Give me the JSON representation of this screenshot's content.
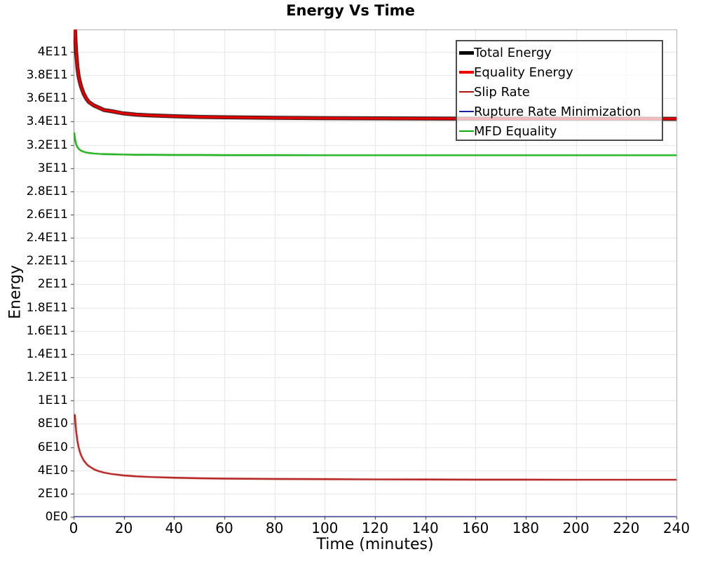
{
  "title": "Energy Vs Time",
  "axes": {
    "x_label": "Time (minutes)",
    "y_label": "Energy",
    "x_tick_labels": [
      "0",
      "20",
      "40",
      "60",
      "80",
      "100",
      "120",
      "140",
      "160",
      "180",
      "200",
      "220",
      "240"
    ],
    "x_tick_values": [
      0,
      20,
      40,
      60,
      80,
      100,
      120,
      140,
      160,
      180,
      200,
      220,
      240
    ],
    "y_tick_labels": [
      "0E0",
      "2E10",
      "4E10",
      "6E10",
      "8E10",
      "1E11",
      "1.2E11",
      "1.4E11",
      "1.6E11",
      "1.8E11",
      "2E11",
      "2.2E11",
      "2.4E11",
      "2.6E11",
      "2.8E11",
      "3E11",
      "3.2E11",
      "3.4E11",
      "3.6E11",
      "3.8E11",
      "4E11"
    ],
    "y_tick_values": [
      0,
      20000000000.0,
      40000000000.0,
      60000000000.0,
      80000000000.0,
      100000000000.0,
      120000000000.0,
      140000000000.0,
      160000000000.0,
      180000000000.0,
      200000000000.0,
      220000000000.0,
      240000000000.0,
      260000000000.0,
      280000000000.0,
      300000000000.0,
      320000000000.0,
      340000000000.0,
      360000000000.0,
      380000000000.0,
      400000000000.0
    ]
  },
  "legend": {
    "items": [
      {
        "label": "Total Energy",
        "color": "#000000",
        "thickness": 5
      },
      {
        "label": "Equality Energy",
        "color": "#ee0000",
        "thickness": 4
      },
      {
        "label": "Slip Rate",
        "color": "#b01212",
        "thickness": 2.5
      },
      {
        "label": "Rupture Rate Minimization",
        "color": "#1c1c9c",
        "thickness": 2.5
      },
      {
        "label": "MFD Equality",
        "color": "#0fab0f",
        "thickness": 2.5
      }
    ]
  },
  "colors": {
    "grid": "#e5e5e5",
    "frame": "#ababab",
    "left_spine": "#8a8a8a",
    "tick_mark": "#333333",
    "background": "#ffffff"
  },
  "chart_data": {
    "type": "line",
    "title": "Energy Vs Time",
    "xlabel": "Time (minutes)",
    "ylabel": "Energy",
    "xlim": [
      0,
      240
    ],
    "ylim": [
      0,
      419300000000.0
    ],
    "grid": true,
    "legend_position": "top-right",
    "series": [
      {
        "name": "Total Energy",
        "color": "#000000",
        "width": 5.5,
        "x": [
          0.3,
          0.5,
          0.75,
          1,
          1.5,
          2,
          2.5,
          3,
          4,
          5,
          6,
          8,
          10,
          12,
          15,
          20,
          25,
          30,
          40,
          50,
          60,
          80,
          100,
          120,
          140,
          160,
          180,
          200,
          220,
          240
        ],
        "y": [
          437000000000.0,
          422000000000.0,
          409000000000.0,
          400000000000.0,
          387000000000.0,
          379000000000.0,
          374000000000.0,
          370000000000.0,
          364000000000.0,
          360000000000.0,
          357000000000.0,
          354000000000.0,
          352000000000.0,
          350000000000.0,
          349000000000.0,
          347000000000.0,
          346000000000.0,
          345400000000.0,
          344600000000.0,
          344100000000.0,
          343700000000.0,
          343300000000.0,
          343000000000.0,
          342900000000.0,
          342700000000.0,
          342600000000.0,
          342600000000.0,
          342500000000.0,
          342500000000.0,
          342400000000.0
        ]
      },
      {
        "name": "Equality Energy",
        "color": "#ee0000",
        "width": 3.5,
        "x": [
          0.3,
          0.5,
          0.75,
          1,
          1.5,
          2,
          2.5,
          3,
          4,
          5,
          6,
          8,
          10,
          12,
          15,
          20,
          25,
          30,
          40,
          50,
          60,
          80,
          100,
          120,
          140,
          160,
          180,
          200,
          220,
          240
        ],
        "y": [
          437000000000.0,
          422000000000.0,
          409000000000.0,
          400000000000.0,
          387000000000.0,
          379000000000.0,
          374000000000.0,
          370000000000.0,
          364000000000.0,
          360000000000.0,
          357000000000.0,
          354000000000.0,
          352000000000.0,
          350000000000.0,
          349000000000.0,
          347000000000.0,
          346000000000.0,
          345400000000.0,
          344600000000.0,
          344100000000.0,
          343700000000.0,
          343300000000.0,
          343000000000.0,
          342900000000.0,
          342700000000.0,
          342600000000.0,
          342600000000.0,
          342500000000.0,
          342500000000.0,
          342400000000.0
        ]
      },
      {
        "name": "Slip Rate",
        "color": "#b01212",
        "width": 2.4,
        "x": [
          0.5,
          0.75,
          1,
          1.5,
          2,
          2.5,
          3,
          4,
          5,
          6,
          8,
          10,
          12,
          15,
          20,
          25,
          30,
          40,
          50,
          60,
          80,
          100,
          120,
          140,
          160,
          180,
          200,
          220,
          240
        ],
        "y": [
          87700000000.0,
          79800000000.0,
          73900000000.0,
          65500000000.0,
          59900000000.0,
          55900000000.0,
          52800000000.0,
          48600000000.0,
          45800000000.0,
          43700000000.0,
          41000000000.0,
          39300000000.0,
          38100000000.0,
          36900000000.0,
          35600000000.0,
          34800000000.0,
          34300000000.0,
          33600000000.0,
          33200000000.0,
          32900000000.0,
          32600000000.0,
          32400000000.0,
          32200000000.0,
          32100000000.0,
          32000000000.0,
          32000000000.0,
          31900000000.0,
          31900000000.0,
          31900000000.0
        ]
      },
      {
        "name": "Rupture Rate Minimization",
        "color": "#1c1c9c",
        "width": 2.2,
        "x": [
          0,
          240
        ],
        "y": [
          0,
          0
        ]
      },
      {
        "name": "MFD Equality",
        "color": "#0fab0f",
        "width": 2.4,
        "x": [
          0.3,
          0.5,
          0.75,
          1,
          1.5,
          2,
          2.5,
          3,
          4,
          5,
          6,
          8,
          10,
          12,
          15,
          20,
          25,
          30,
          40,
          50,
          60,
          80,
          100,
          120,
          140,
          160,
          180,
          200,
          220,
          240
        ],
        "y": [
          330000000000.0,
          325900000000.0,
          322700000000.0,
          320700000000.0,
          318100000000.0,
          316700000000.0,
          315700000000.0,
          315000000000.0,
          314100000000.0,
          313500000000.0,
          313100000000.0,
          312600000000.0,
          312300000000.0,
          312100000000.0,
          311900000000.0,
          311700000000.0,
          311500000000.0,
          311500000000.0,
          311300000000.0,
          311300000000.0,
          311200000000.0,
          311200000000.0,
          311100000000.0,
          311100000000.0,
          311100000000.0,
          311100000000.0,
          311100000000.0,
          311100000000.0,
          311100000000.0,
          311100000000.0
        ]
      }
    ]
  }
}
